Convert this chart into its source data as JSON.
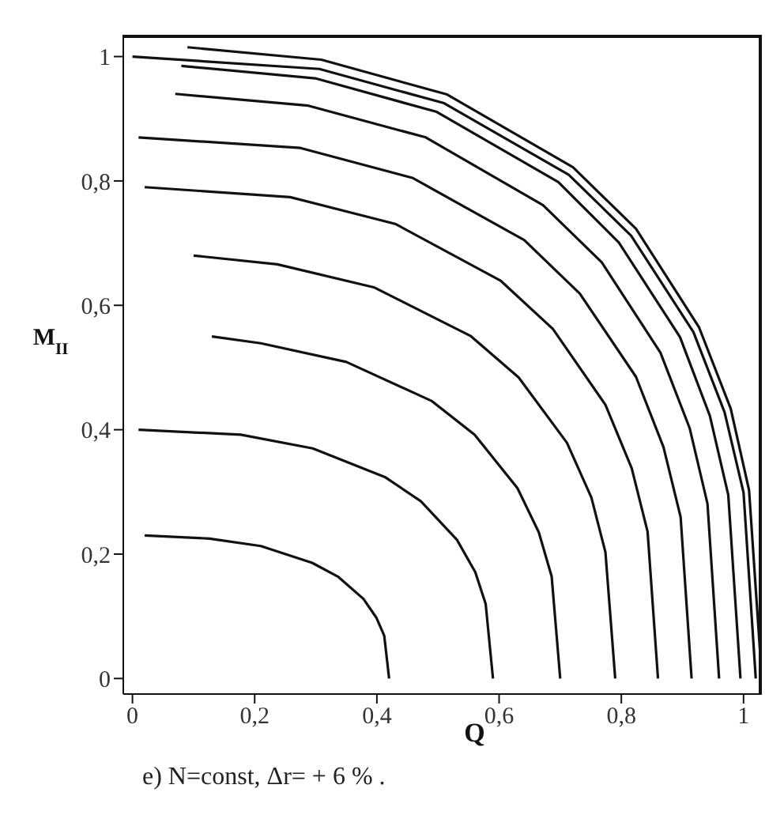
{
  "chart_data": {
    "type": "line",
    "xlabel": "Q",
    "ylabel": "M$_{II}$",
    "annotations": [
      "e) N=const,  Δr= + 6 %  ."
    ],
    "xlim": [
      -0.015,
      1.03
    ],
    "ylim": [
      -0.025,
      1.035
    ],
    "xticks": [
      {
        "value": 0,
        "label": "0"
      },
      {
        "value": 0.2,
        "label": "0,2"
      },
      {
        "value": 0.4,
        "label": "0,4"
      },
      {
        "value": 0.6,
        "label": "0,6"
      },
      {
        "value": 0.8,
        "label": "0,8"
      },
      {
        "value": 1,
        "label": "1"
      }
    ],
    "yticks": [
      {
        "value": 0,
        "label": "0"
      },
      {
        "value": 0.2,
        "label": "0,2"
      },
      {
        "value": 0.4,
        "label": "0,4"
      },
      {
        "value": 0.6,
        "label": "0,6"
      },
      {
        "value": 0.8,
        "label": "0,8"
      },
      {
        "value": 1,
        "label": "1"
      }
    ],
    "marker": "none",
    "line_style": "solid",
    "series": [
      {
        "color": "#111111",
        "x": [
          0.02,
          0.126,
          0.21,
          0.294,
          0.336,
          0.378,
          0.399,
          0.412,
          0.42
        ],
        "values": [
          0.23,
          0.225,
          0.213,
          0.186,
          0.164,
          0.128,
          0.098,
          0.069,
          0
        ]
      },
      {
        "color": "#111111",
        "x": [
          0.01,
          0.177,
          0.295,
          0.413,
          0.472,
          0.531,
          0.561,
          0.578,
          0.59
        ],
        "values": [
          0.4,
          0.392,
          0.37,
          0.324,
          0.285,
          0.223,
          0.171,
          0.12,
          0
        ]
      },
      {
        "color": "#111111",
        "x": [
          0.13,
          0.21,
          0.35,
          0.49,
          0.56,
          0.63,
          0.665,
          0.686,
          0.7
        ],
        "values": [
          0.55,
          0.539,
          0.509,
          0.446,
          0.392,
          0.306,
          0.235,
          0.164,
          0
        ]
      },
      {
        "color": "#111111",
        "x": [
          0.1,
          0.237,
          0.395,
          0.553,
          0.632,
          0.711,
          0.751,
          0.774,
          0.79
        ],
        "values": [
          0.68,
          0.666,
          0.629,
          0.551,
          0.484,
          0.379,
          0.291,
          0.203,
          0
        ]
      },
      {
        "color": "#111111",
        "x": [
          0.02,
          0.258,
          0.43,
          0.602,
          0.688,
          0.774,
          0.817,
          0.843,
          0.86
        ],
        "values": [
          0.79,
          0.774,
          0.731,
          0.64,
          0.562,
          0.44,
          0.338,
          0.236,
          0
        ]
      },
      {
        "color": "#111111",
        "x": [
          0.01,
          0.275,
          0.458,
          0.641,
          0.732,
          0.824,
          0.869,
          0.897,
          0.915
        ],
        "values": [
          0.87,
          0.853,
          0.805,
          0.705,
          0.619,
          0.485,
          0.372,
          0.26,
          0
        ]
      },
      {
        "color": "#111111",
        "x": [
          0.07,
          0.288,
          0.48,
          0.672,
          0.768,
          0.864,
          0.912,
          0.941,
          0.96
        ],
        "values": [
          0.94,
          0.921,
          0.87,
          0.761,
          0.669,
          0.524,
          0.402,
          0.281,
          0
        ]
      },
      {
        "color": "#111111",
        "x": [
          0.08,
          0.299,
          0.498,
          0.697,
          0.796,
          0.896,
          0.945,
          0.975,
          0.995
        ],
        "values": [
          0.985,
          0.965,
          0.911,
          0.798,
          0.701,
          0.549,
          0.422,
          0.295,
          0
        ]
      },
      {
        "color": "#111111",
        "x": [
          0,
          0.306,
          0.51,
          0.714,
          0.816,
          0.918,
          0.969,
          1,
          1.02
        ],
        "values": [
          1,
          0.98,
          0.925,
          0.81,
          0.712,
          0.557,
          0.428,
          0.299,
          0
        ]
      },
      {
        "color": "#111111",
        "x": [
          0.09,
          0.309,
          0.515,
          0.721,
          0.824,
          0.927,
          0.979,
          1.009,
          1.03
        ],
        "values": [
          1.015,
          0.995,
          0.939,
          0.822,
          0.723,
          0.565,
          0.434,
          0.303,
          0
        ]
      }
    ]
  }
}
